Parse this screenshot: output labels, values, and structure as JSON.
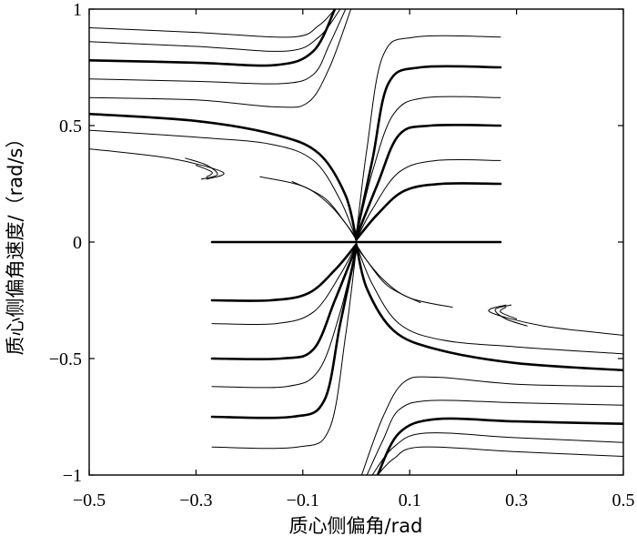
{
  "chart_data": {
    "type": "line",
    "title": "",
    "xlabel": "质心侧偏角/rad",
    "ylabel": "质心侧偏角速度/（rad/s）",
    "xlim": [
      -0.5,
      0.5
    ],
    "ylim": [
      -1,
      1
    ],
    "xticks": [
      -0.5,
      -0.3,
      -0.1,
      0.1,
      0.3,
      0.5
    ],
    "xtick_labels": [
      "−0.5",
      "−0.3",
      "−0.1",
      "0.1",
      "0.3",
      "0.5"
    ],
    "yticks": [
      -1,
      -0.5,
      0,
      0.5,
      1
    ],
    "ytick_labels": [
      "−1",
      "−0.5",
      "0",
      "0.5",
      "1"
    ],
    "grid": false,
    "legend": "none",
    "description_of_series": "phase-plane trajectories of sideslip angle vs sideslip angle rate",
    "series": [
      {
        "weight": "bold",
        "x": [
          -0.27,
          0.27
        ],
        "y": [
          0,
          0
        ]
      },
      {
        "weight": "bold",
        "x": [
          0.27,
          0.16,
          0.09,
          0.04,
          0.0
        ],
        "y": [
          0.25,
          0.25,
          0.22,
          0.12,
          0.01
        ]
      },
      {
        "weight": "bold",
        "x": [
          0.27,
          0.14,
          0.08,
          0.04,
          0.0
        ],
        "y": [
          0.5,
          0.5,
          0.46,
          0.25,
          0.02
        ]
      },
      {
        "weight": "bold",
        "x": [
          0.27,
          0.12,
          0.06,
          0.03,
          0.0
        ],
        "y": [
          0.75,
          0.75,
          0.68,
          0.35,
          0.03
        ]
      },
      {
        "weight": "bold",
        "x": [
          -0.27,
          -0.16,
          -0.09,
          -0.04,
          0.0
        ],
        "y": [
          -0.25,
          -0.25,
          -0.22,
          -0.12,
          -0.01
        ]
      },
      {
        "weight": "bold",
        "x": [
          -0.27,
          -0.14,
          -0.08,
          -0.04,
          0.0
        ],
        "y": [
          -0.5,
          -0.5,
          -0.46,
          -0.25,
          -0.02
        ]
      },
      {
        "weight": "bold",
        "x": [
          -0.27,
          -0.12,
          -0.06,
          -0.03,
          0.0
        ],
        "y": [
          -0.75,
          -0.75,
          -0.68,
          -0.35,
          -0.03
        ]
      },
      {
        "weight": "bold",
        "x": [
          -0.5,
          -0.3,
          -0.15,
          -0.08,
          -0.04
        ],
        "y": [
          0.78,
          0.77,
          0.76,
          0.82,
          1.0
        ]
      },
      {
        "weight": "bold",
        "x": [
          -0.5,
          -0.3,
          -0.15,
          -0.07,
          -0.02,
          0.0
        ],
        "y": [
          0.55,
          0.52,
          0.46,
          0.38,
          0.2,
          0.01
        ]
      },
      {
        "weight": "bold",
        "x": [
          0.5,
          0.3,
          0.15,
          0.08,
          0.04
        ],
        "y": [
          -0.78,
          -0.77,
          -0.76,
          -0.82,
          -1.0
        ]
      },
      {
        "weight": "bold",
        "x": [
          0.5,
          0.3,
          0.15,
          0.07,
          0.02,
          0.0
        ],
        "y": [
          -0.55,
          -0.52,
          -0.46,
          -0.38,
          -0.2,
          -0.01
        ]
      },
      {
        "weight": "thin",
        "x": [
          -0.5,
          -0.3,
          -0.12,
          -0.07,
          -0.04
        ],
        "y": [
          0.92,
          0.9,
          0.88,
          0.93,
          1.0
        ]
      },
      {
        "weight": "thin",
        "x": [
          -0.5,
          -0.3,
          -0.13,
          -0.07,
          -0.03
        ],
        "y": [
          0.86,
          0.84,
          0.82,
          0.88,
          1.0
        ]
      },
      {
        "weight": "thin",
        "x": [
          -0.5,
          -0.3,
          -0.14,
          -0.08,
          -0.05,
          -0.02
        ],
        "y": [
          0.7,
          0.69,
          0.68,
          0.72,
          0.85,
          1.0
        ]
      },
      {
        "weight": "thin",
        "x": [
          -0.5,
          -0.3,
          -0.15,
          -0.09,
          -0.05,
          -0.01
        ],
        "y": [
          0.62,
          0.61,
          0.58,
          0.6,
          0.75,
          1.0
        ]
      },
      {
        "weight": "thin",
        "x": [
          -0.5,
          -0.3,
          -0.16,
          -0.08,
          -0.03,
          0.0
        ],
        "y": [
          0.48,
          0.45,
          0.42,
          0.35,
          0.18,
          0.01
        ]
      },
      {
        "weight": "thin",
        "x": [
          -0.5,
          -0.35,
          -0.25,
          -0.28
        ],
        "y": [
          0.4,
          0.36,
          0.3,
          0.27
        ]
      },
      {
        "weight": "thin",
        "x": [
          -0.32,
          -0.28,
          -0.26,
          -0.29
        ],
        "y": [
          0.36,
          0.33,
          0.29,
          0.27
        ]
      },
      {
        "weight": "thin",
        "x": [
          -0.3,
          -0.27,
          -0.28
        ],
        "y": [
          0.33,
          0.3,
          0.28
        ]
      },
      {
        "weight": "thin",
        "x": [
          -0.18,
          -0.1,
          -0.05,
          -0.01,
          0.0
        ],
        "y": [
          0.28,
          0.24,
          0.16,
          0.05,
          0.01
        ]
      },
      {
        "weight": "thin",
        "x": [
          -0.12,
          -0.06,
          -0.02,
          0.0
        ],
        "y": [
          0.26,
          0.19,
          0.08,
          0.01
        ]
      },
      {
        "weight": "thin",
        "x": [
          0.27,
          0.15,
          0.08,
          0.03,
          0.0
        ],
        "y": [
          0.35,
          0.35,
          0.3,
          0.14,
          0.01
        ]
      },
      {
        "weight": "thin",
        "x": [
          0.27,
          0.13,
          0.07,
          0.03,
          0.0
        ],
        "y": [
          0.62,
          0.62,
          0.55,
          0.3,
          0.02
        ]
      },
      {
        "weight": "thin",
        "x": [
          0.27,
          0.11,
          0.05,
          0.02,
          0.0
        ],
        "y": [
          0.88,
          0.88,
          0.8,
          0.4,
          0.03
        ]
      },
      {
        "weight": "thin",
        "x": [
          0.5,
          0.3,
          0.12,
          0.07,
          0.04
        ],
        "y": [
          -0.92,
          -0.9,
          -0.88,
          -0.93,
          -1.0
        ]
      },
      {
        "weight": "thin",
        "x": [
          0.5,
          0.3,
          0.13,
          0.07,
          0.03
        ],
        "y": [
          -0.86,
          -0.84,
          -0.82,
          -0.88,
          -1.0
        ]
      },
      {
        "weight": "thin",
        "x": [
          0.5,
          0.3,
          0.14,
          0.08,
          0.05,
          0.02
        ],
        "y": [
          -0.7,
          -0.69,
          -0.68,
          -0.72,
          -0.85,
          -1.0
        ]
      },
      {
        "weight": "thin",
        "x": [
          0.5,
          0.3,
          0.15,
          0.09,
          0.05,
          0.01
        ],
        "y": [
          -0.62,
          -0.61,
          -0.58,
          -0.6,
          -0.75,
          -1.0
        ]
      },
      {
        "weight": "thin",
        "x": [
          0.5,
          0.3,
          0.16,
          0.08,
          0.03,
          0.0
        ],
        "y": [
          -0.48,
          -0.45,
          -0.42,
          -0.35,
          -0.18,
          -0.01
        ]
      },
      {
        "weight": "thin",
        "x": [
          0.5,
          0.35,
          0.25,
          0.28
        ],
        "y": [
          -0.4,
          -0.36,
          -0.3,
          -0.27
        ]
      },
      {
        "weight": "thin",
        "x": [
          0.32,
          0.28,
          0.26,
          0.29
        ],
        "y": [
          -0.36,
          -0.33,
          -0.29,
          -0.27
        ]
      },
      {
        "weight": "thin",
        "x": [
          0.3,
          0.27,
          0.28
        ],
        "y": [
          -0.33,
          -0.3,
          -0.28
        ]
      },
      {
        "weight": "thin",
        "x": [
          0.18,
          0.1,
          0.05,
          0.01,
          0.0
        ],
        "y": [
          -0.28,
          -0.24,
          -0.16,
          -0.05,
          -0.01
        ]
      },
      {
        "weight": "thin",
        "x": [
          0.12,
          0.06,
          0.02,
          0.0
        ],
        "y": [
          -0.26,
          -0.19,
          -0.08,
          -0.01
        ]
      },
      {
        "weight": "thin",
        "x": [
          -0.27,
          -0.15,
          -0.08,
          -0.03,
          0.0
        ],
        "y": [
          -0.35,
          -0.35,
          -0.3,
          -0.14,
          -0.01
        ]
      },
      {
        "weight": "thin",
        "x": [
          -0.27,
          -0.13,
          -0.07,
          -0.03,
          0.0
        ],
        "y": [
          -0.62,
          -0.62,
          -0.55,
          -0.3,
          -0.02
        ]
      },
      {
        "weight": "thin",
        "x": [
          -0.27,
          -0.11,
          -0.05,
          -0.02,
          0.0
        ],
        "y": [
          -0.88,
          -0.88,
          -0.8,
          -0.4,
          -0.03
        ]
      }
    ]
  }
}
